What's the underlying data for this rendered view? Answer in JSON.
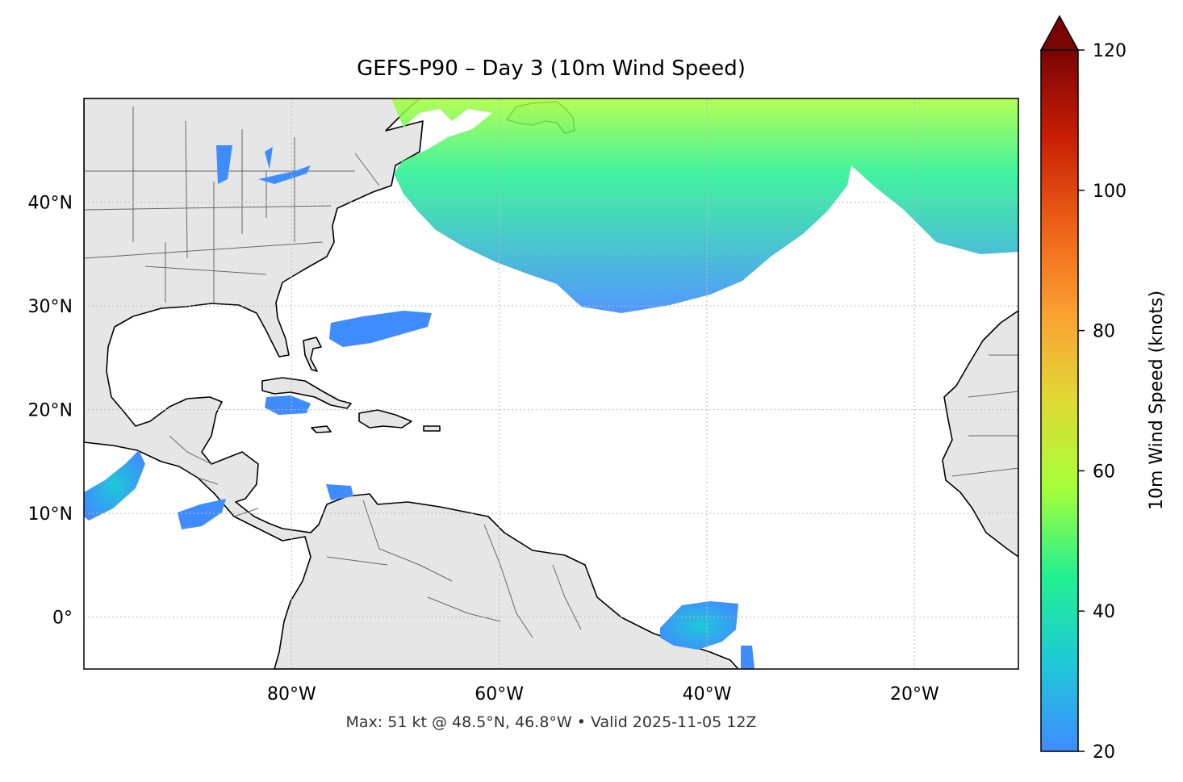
{
  "title": "GEFS-P90 – Day 3 (10m Wind Speed)",
  "footer": "Max: 51 kt @ 48.5°N, 46.8°W • Valid 2025-11-05 12Z",
  "map": {
    "extent_lon": [
      -100,
      -10
    ],
    "extent_lat": [
      -5,
      50
    ],
    "land_color": "#e6e6e6",
    "ocean_color": "#ffffff",
    "coastline_color": "#000000",
    "border_color": "#666666",
    "gridlines": true,
    "lon_ticks": [
      {
        "value": -80,
        "label": "80°W"
      },
      {
        "value": -60,
        "label": "60°W"
      },
      {
        "value": -40,
        "label": "40°W"
      },
      {
        "value": -20,
        "label": "20°W"
      }
    ],
    "lat_ticks": [
      {
        "value": 40,
        "label": "40°N"
      },
      {
        "value": 30,
        "label": "30°N"
      },
      {
        "value": 20,
        "label": "20°N"
      },
      {
        "value": 10,
        "label": "10°N"
      },
      {
        "value": 0,
        "label": "0°"
      }
    ]
  },
  "chart_data": {
    "type": "heatmap",
    "variable": "10m Wind Speed",
    "units": "knots",
    "max_value_kt": 51,
    "max_location": {
      "lat": 48.5,
      "lon": -46.8
    },
    "valid_time": "2025-11-05 12Z",
    "colorbar": {
      "label": "10m Wind Speed (knots)",
      "min": 20,
      "max": 120,
      "extend": "max",
      "ticks": [
        20,
        40,
        60,
        80,
        100,
        120
      ],
      "colors": [
        "#3f8cff",
        "#1ec8d8",
        "#22f090",
        "#a6ff38",
        "#e0d934",
        "#fba032",
        "#ee6018",
        "#c81e04",
        "#7a0403"
      ]
    },
    "regions": [
      {
        "name": "North Atlantic northern band",
        "typical_kt": "25-45"
      },
      {
        "name": "Southern Bahamas / Caribbean patches",
        "typical_kt": "20-25"
      },
      {
        "name": "Eastern Pacific off Mexico",
        "typical_kt": "20-35"
      },
      {
        "name": "Equatorial Atlantic near 40°W",
        "typical_kt": "20-28"
      }
    ]
  }
}
